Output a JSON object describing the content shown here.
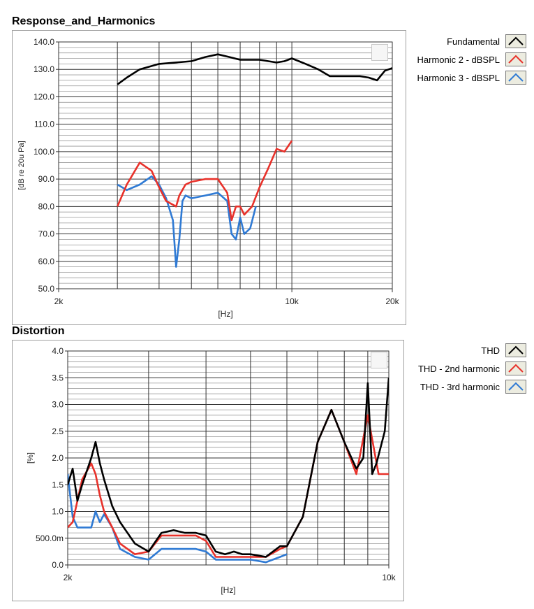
{
  "charts": [
    {
      "title": "Response_and_Harmonics",
      "xlabel": "[Hz]",
      "ylabel": "[dB re 20u Pa]",
      "xlim": [
        2000,
        20000
      ],
      "ylim": [
        50,
        140
      ],
      "x_scale": "log",
      "y_ticks": [
        "50.0",
        "60.0",
        "70.0",
        "80.0",
        "90.0",
        "100.0",
        "110.0",
        "120.0",
        "130.0",
        "140.0"
      ],
      "x_ticks": [
        "2k",
        "10k",
        "20k"
      ],
      "legend": [
        {
          "label": "Fundamental",
          "color": "#000000"
        },
        {
          "label": "Harmonic 2 - dBSPL",
          "color": "#e8312a"
        },
        {
          "label": "Harmonic 3 - dBSPL",
          "color": "#2f7ad4"
        }
      ]
    },
    {
      "title": "Distortion",
      "xlabel": "[Hz]",
      "ylabel": "[%]",
      "xlim": [
        2000,
        10000
      ],
      "ylim": [
        0,
        4
      ],
      "x_scale": "log",
      "y_ticks": [
        "0.0",
        "500.0m",
        "1.0",
        "1.5",
        "2.0",
        "2.5",
        "3.0",
        "3.5",
        "4.0"
      ],
      "x_ticks": [
        "2k",
        "10k"
      ],
      "legend": [
        {
          "label": "THD",
          "color": "#000000"
        },
        {
          "label": "THD - 2nd harmonic",
          "color": "#e8312a"
        },
        {
          "label": "THD - 3rd harmonic",
          "color": "#2f7ad4"
        }
      ]
    }
  ],
  "chart_data": [
    {
      "type": "line",
      "title": "Response_and_Harmonics",
      "xlabel": "[Hz]",
      "ylabel": "[dB re 20u Pa]",
      "xlim": [
        2000,
        20000
      ],
      "ylim": [
        50,
        140
      ],
      "x_scale": "log",
      "grid": true,
      "legend_position": "right",
      "series": [
        {
          "name": "Fundamental",
          "color": "#000000",
          "x": [
            3000,
            3200,
            3500,
            4000,
            4500,
            5000,
            5500,
            6000,
            6500,
            7000,
            7500,
            8000,
            8500,
            9000,
            9500,
            10000,
            10500,
            11000,
            12000,
            13000,
            14000,
            15000,
            16000,
            17000,
            18000,
            19000,
            20000
          ],
          "y": [
            124.5,
            127,
            130,
            132,
            132.5,
            133,
            134.5,
            135.5,
            134.5,
            133.5,
            133.5,
            133.5,
            133,
            132.5,
            133,
            134,
            133,
            132,
            130,
            127.5,
            127.5,
            127.5,
            127.5,
            127,
            126,
            129.5,
            130.5
          ]
        },
        {
          "name": "Harmonic 2 - dBSPL",
          "color": "#e8312a",
          "x": [
            3000,
            3200,
            3500,
            3800,
            4000,
            4200,
            4500,
            4600,
            4800,
            5000,
            5500,
            6000,
            6400,
            6600,
            6800,
            7000,
            7200,
            7600,
            8000,
            8500,
            9000,
            9500,
            10000
          ],
          "y": [
            80,
            88,
            96,
            93,
            87,
            82,
            80,
            84,
            88,
            89,
            90,
            90,
            85,
            75,
            80,
            80,
            77,
            80,
            87,
            94,
            101,
            100,
            104
          ]
        },
        {
          "name": "Harmonic 3 - dBSPL",
          "color": "#2f7ad4",
          "x": [
            3000,
            3200,
            3500,
            3800,
            4000,
            4200,
            4400,
            4500,
            4600,
            4700,
            4800,
            5000,
            5500,
            6000,
            6400,
            6600,
            6800,
            7000,
            7200,
            7500,
            7800
          ],
          "y": [
            88,
            86,
            88,
            91,
            88,
            83,
            75,
            58,
            68,
            82,
            84,
            83,
            84,
            85,
            82,
            70,
            68,
            76,
            70,
            72,
            80
          ]
        }
      ]
    },
    {
      "type": "line",
      "title": "Distortion",
      "xlabel": "[Hz]",
      "ylabel": "[%]",
      "xlim": [
        2000,
        10000
      ],
      "ylim": [
        0,
        4
      ],
      "x_scale": "log",
      "grid": true,
      "legend_position": "right",
      "series": [
        {
          "name": "THD",
          "color": "#000000",
          "x": [
            2000,
            2050,
            2100,
            2150,
            2250,
            2300,
            2350,
            2400,
            2500,
            2600,
            2800,
            3000,
            3200,
            3400,
            3600,
            3800,
            4000,
            4200,
            4400,
            4600,
            4800,
            5000,
            5400,
            5800,
            6000,
            6500,
            7000,
            7500,
            8000,
            8500,
            8800,
            9000,
            9200,
            9400,
            9600,
            9800,
            10000
          ],
          "y": [
            1.5,
            1.8,
            1.2,
            1.5,
            2.0,
            2.3,
            1.9,
            1.6,
            1.1,
            0.8,
            0.4,
            0.25,
            0.6,
            0.65,
            0.6,
            0.6,
            0.55,
            0.25,
            0.2,
            0.25,
            0.2,
            0.2,
            0.15,
            0.35,
            0.35,
            0.9,
            2.3,
            2.9,
            2.3,
            1.8,
            2.0,
            3.4,
            1.7,
            1.9,
            2.2,
            2.5,
            3.5
          ]
        },
        {
          "name": "THD - 2nd harmonic",
          "color": "#e8312a",
          "x": [
            2000,
            2050,
            2100,
            2150,
            2250,
            2300,
            2350,
            2400,
            2500,
            2600,
            2800,
            3000,
            3200,
            3400,
            3600,
            3800,
            4000,
            4200,
            4400,
            4600,
            4800,
            5000,
            5400,
            5800,
            6000,
            6500,
            7000,
            7500,
            8000,
            8500,
            9000,
            9500,
            10000
          ],
          "y": [
            0.7,
            0.8,
            1.2,
            1.6,
            1.9,
            1.7,
            1.3,
            1.0,
            0.7,
            0.4,
            0.2,
            0.25,
            0.55,
            0.55,
            0.55,
            0.55,
            0.45,
            0.15,
            0.15,
            0.15,
            0.15,
            0.15,
            0.15,
            0.3,
            0.35,
            0.9,
            2.3,
            2.9,
            2.3,
            1.7,
            2.8,
            1.7,
            1.7
          ]
        },
        {
          "name": "THD - 3rd harmonic",
          "color": "#2f7ad4",
          "x": [
            2000,
            2050,
            2100,
            2150,
            2250,
            2300,
            2350,
            2400,
            2500,
            2600,
            2800,
            3000,
            3200,
            3400,
            3600,
            3800,
            4000,
            4200,
            4400,
            4600,
            4800,
            5000,
            5400,
            5800,
            6000
          ],
          "y": [
            1.7,
            0.9,
            0.7,
            0.7,
            0.7,
            1.0,
            0.8,
            0.95,
            0.7,
            0.3,
            0.15,
            0.1,
            0.3,
            0.3,
            0.3,
            0.3,
            0.25,
            0.1,
            0.1,
            0.1,
            0.1,
            0.1,
            0.05,
            0.15,
            0.2
          ]
        }
      ]
    }
  ]
}
